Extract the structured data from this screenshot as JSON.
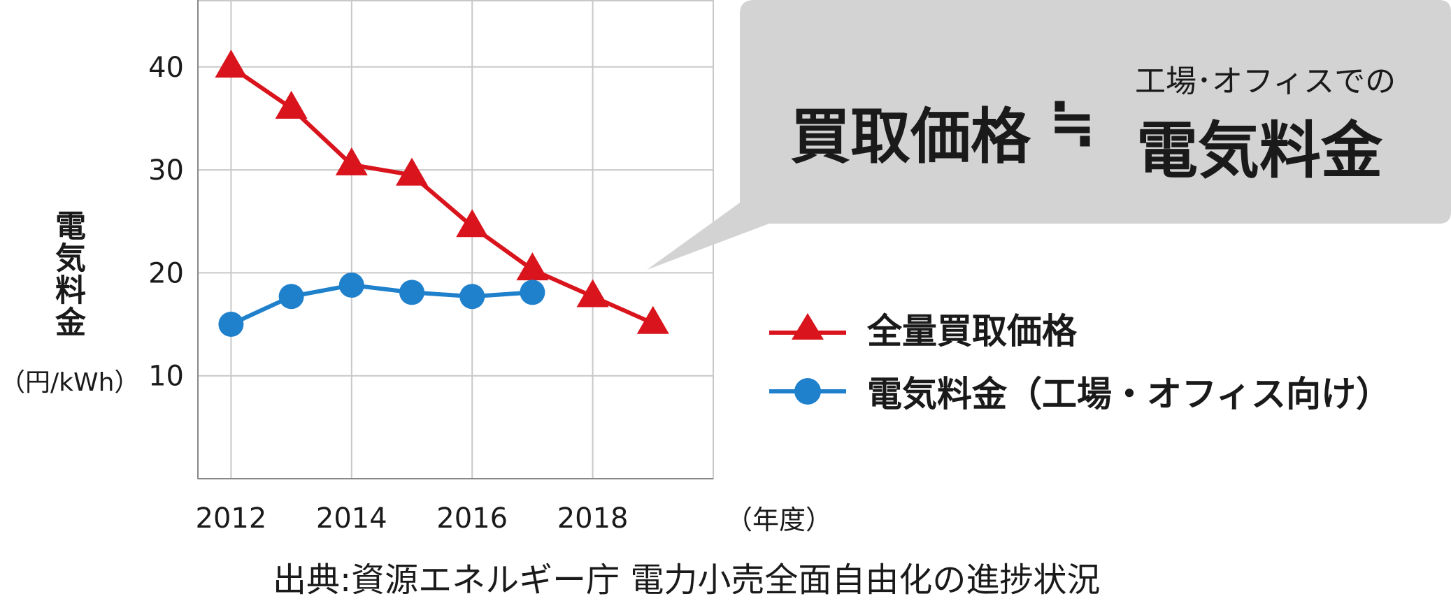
{
  "chart_data": {
    "type": "line",
    "x": [
      2012,
      2013,
      2014,
      2015,
      2016,
      2017,
      2018,
      2019
    ],
    "xticks": [
      "2012",
      "2014",
      "2016",
      "2018"
    ],
    "xlabel": "（年度）",
    "ylabel": "電気料金",
    "yunit": "（円/kWh）",
    "yticks": [
      "10",
      "20",
      "30",
      "40"
    ],
    "xlim": [
      2011.45,
      2020.0
    ],
    "ylim": [
      0,
      46.5
    ],
    "grid": true,
    "legend_position": "right",
    "series": [
      {
        "name": "全量買取価格",
        "marker": "triangle",
        "color": "#d9141c",
        "values": [
          40,
          36,
          30.5,
          29.5,
          24.5,
          20.3,
          17.7,
          15.1
        ]
      },
      {
        "name": "電気料金（工場・オフィス向け）",
        "marker": "circle",
        "color": "#1f80cc",
        "values": [
          15.0,
          17.7,
          18.8,
          18.1,
          17.7,
          18.1,
          null,
          null
        ]
      }
    ]
  },
  "callout": {
    "main": "買取価格",
    "approx": "≒",
    "sub": "工場･オフィスでの",
    "big": "電気料金"
  },
  "source": "出典:資源エネルギー庁 電力小売全面自由化の進捗状況",
  "colors": {
    "grid": "#c8c8c8",
    "callout_bg": "#d3d3d3"
  }
}
